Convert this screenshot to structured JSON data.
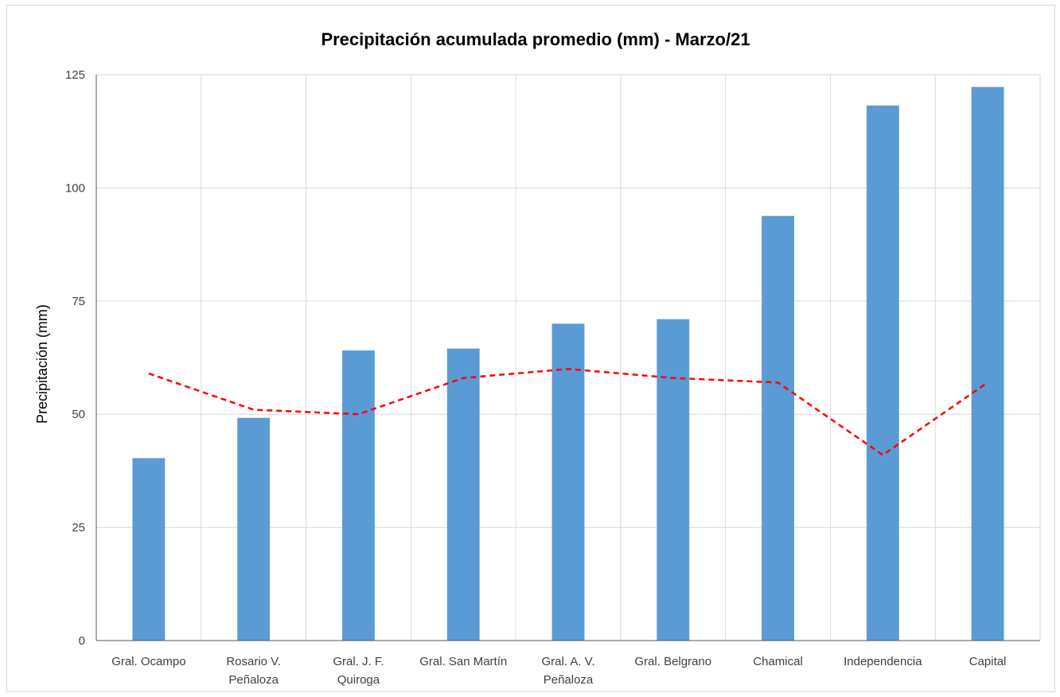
{
  "chart_data": {
    "type": "bar",
    "title": "Precipitación acumulada promedio (mm) - Marzo/21",
    "xlabel": "",
    "ylabel": "Precipitación (mm)",
    "ylim": [
      0,
      125
    ],
    "yticks": [
      0,
      25,
      50,
      75,
      100,
      125
    ],
    "grid": true,
    "legend": "none",
    "categories": [
      [
        "Gral. Ocampo"
      ],
      [
        "Rosario V.",
        "Peñaloza"
      ],
      [
        "Gral. J. F.",
        "Quiroga"
      ],
      [
        "Gral. San Martín"
      ],
      [
        "Gral. A. V.",
        "Peñaloza"
      ],
      [
        "Gral. Belgrano"
      ],
      [
        "Chamical"
      ],
      [
        "Independencia"
      ],
      [
        "Capital"
      ]
    ],
    "series": [
      {
        "type": "bar",
        "color": "#5b9bd5",
        "values": [
          40.3,
          49.2,
          64.1,
          64.5,
          70.0,
          71.0,
          93.8,
          118.2,
          122.3
        ]
      },
      {
        "type": "line",
        "style": "dashed",
        "color": "#ff0000",
        "values": [
          59,
          51,
          50,
          58,
          60,
          58,
          57,
          41,
          57
        ]
      }
    ]
  }
}
